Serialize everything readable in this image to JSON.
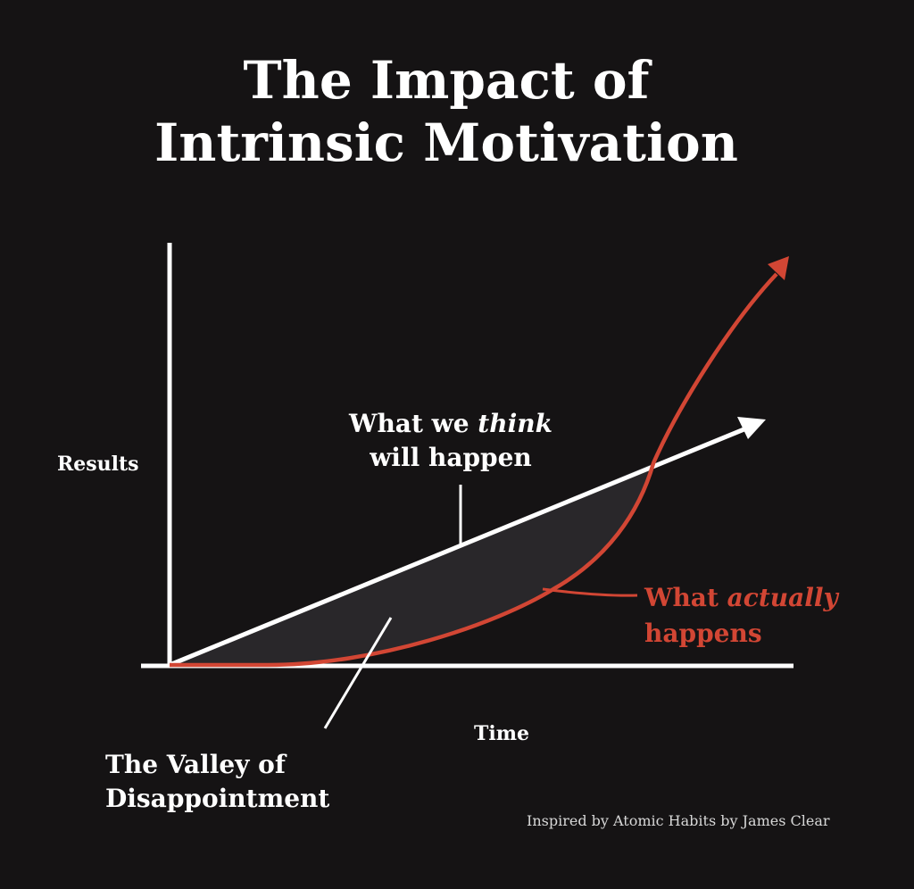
{
  "title": {
    "line1": "The Impact of",
    "line2": "Intrinsic Motivation"
  },
  "axes": {
    "y_label": "Results",
    "x_label": "Time"
  },
  "expected": {
    "line1": "What we ",
    "emphasis": "think",
    "line2": "will happen",
    "color": "#ffffff"
  },
  "actual": {
    "prefix": "What ",
    "emphasis": "actually",
    "line2": "happens",
    "color": "#d24634"
  },
  "valley": {
    "line1": "The Valley of",
    "line2": "Disappointment",
    "fill": "#29272a"
  },
  "credit": "Inspired by Atomic Habits by James Clear",
  "colors": {
    "background": "#151314",
    "axis": "#ffffff"
  }
}
